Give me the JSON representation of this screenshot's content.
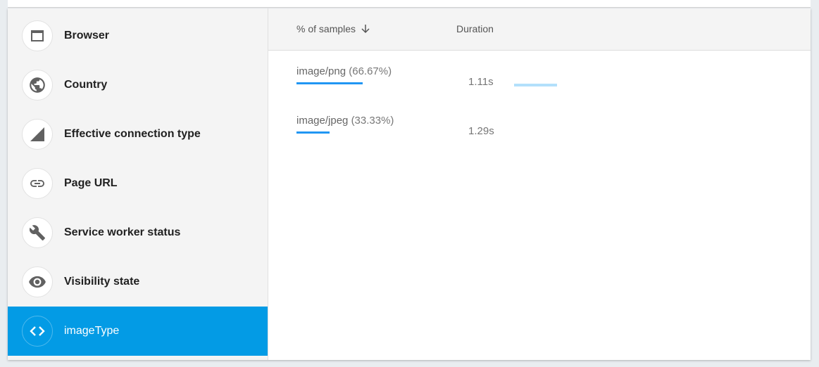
{
  "sidebar": {
    "items": [
      {
        "label": "Browser",
        "icon": "browser-window-icon"
      },
      {
        "label": "Country",
        "icon": "globe-icon"
      },
      {
        "label": "Effective connection type",
        "icon": "signal-icon"
      },
      {
        "label": "Page URL",
        "icon": "link-icon"
      },
      {
        "label": "Service worker status",
        "icon": "wrench-icon"
      },
      {
        "label": "Visibility state",
        "icon": "eye-icon"
      },
      {
        "label": "imageType",
        "icon": "code-icon",
        "active": true
      }
    ]
  },
  "table": {
    "col_samples": "% of samples",
    "col_duration": "Duration",
    "rows": [
      {
        "name": "image/png",
        "percent": "(66.67%)",
        "percent_value": 66.67,
        "duration": "1.11s",
        "duration_bar": true
      },
      {
        "name": "image/jpeg",
        "percent": "(33.33%)",
        "percent_value": 33.33,
        "duration": "1.29s",
        "duration_bar": false
      }
    ]
  },
  "colors": {
    "accent": "#039be5",
    "sample_bar": "#2196f3",
    "duration_bar": "#b3e0fb"
  }
}
